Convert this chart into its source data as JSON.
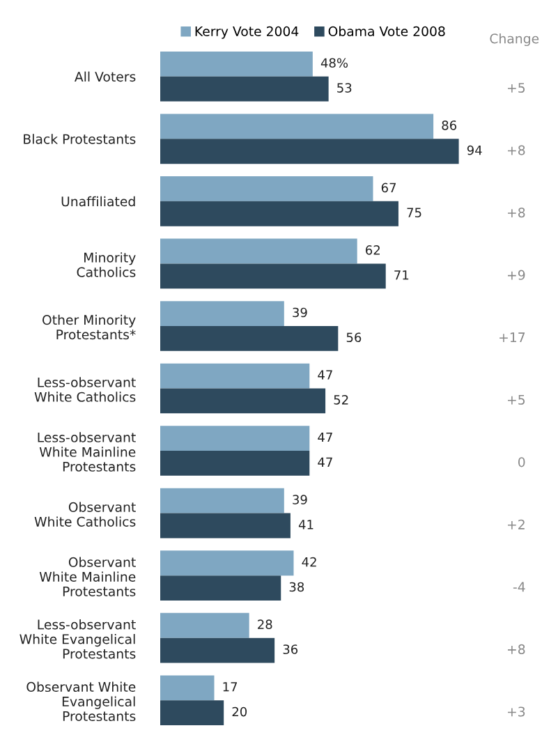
{
  "chart_data": {
    "type": "bar",
    "orientation": "horizontal",
    "legend": "top",
    "categories": [
      "All Voters",
      "Black Protestants",
      "Unaffiliated",
      "Minority\nCatholics",
      "Other Minority\nProtestants*",
      "Less-observant\nWhite Catholics",
      "Less-observant\nWhite Mainline\nProtestants",
      "Observant\nWhite Catholics",
      "Observant\nWhite Mainline\nProtestants",
      "Less-observant\nWhite Evangelical\nProtestants",
      "Observant White\nEvangelical\nProtestants"
    ],
    "series": [
      {
        "name": "Kerry Vote 2004",
        "color": "#7fa7c2",
        "values": [
          48,
          86,
          67,
          62,
          39,
          47,
          47,
          39,
          42,
          28,
          17
        ],
        "value_labels": [
          "48%",
          "86",
          "67",
          "62",
          "39",
          "47",
          "47",
          "39",
          "42",
          "28",
          "17"
        ]
      },
      {
        "name": "Obama Vote 2008",
        "color": "#2e4a5e",
        "values": [
          53,
          94,
          75,
          71,
          56,
          52,
          47,
          41,
          38,
          36,
          20
        ],
        "value_labels": [
          "53",
          "94",
          "75",
          "71",
          "56",
          "52",
          "47",
          "41",
          "38",
          "36",
          "20"
        ]
      }
    ],
    "annotations": [
      "Change",
      "+5",
      "+8",
      "+8",
      "+9",
      "+17",
      "+5",
      "0",
      "+2",
      "-4",
      "+8",
      "+3"
    ]
  }
}
